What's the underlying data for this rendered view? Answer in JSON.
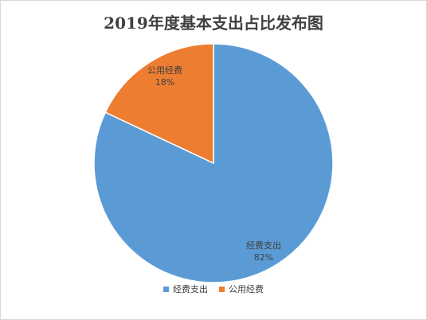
{
  "chart_data": {
    "type": "pie",
    "title": "2019年度基本支出占比发布图",
    "slices": [
      {
        "label": "经费支出",
        "value": 82,
        "value_label": "82%",
        "color": "#5b9bd5"
      },
      {
        "label": "公用经费",
        "value": 18,
        "value_label": "18%",
        "color": "#ed7d31"
      }
    ],
    "legend": {
      "position": "bottom",
      "items": [
        "经费支出",
        "公用经费"
      ]
    },
    "border_color": "#ffffff"
  }
}
